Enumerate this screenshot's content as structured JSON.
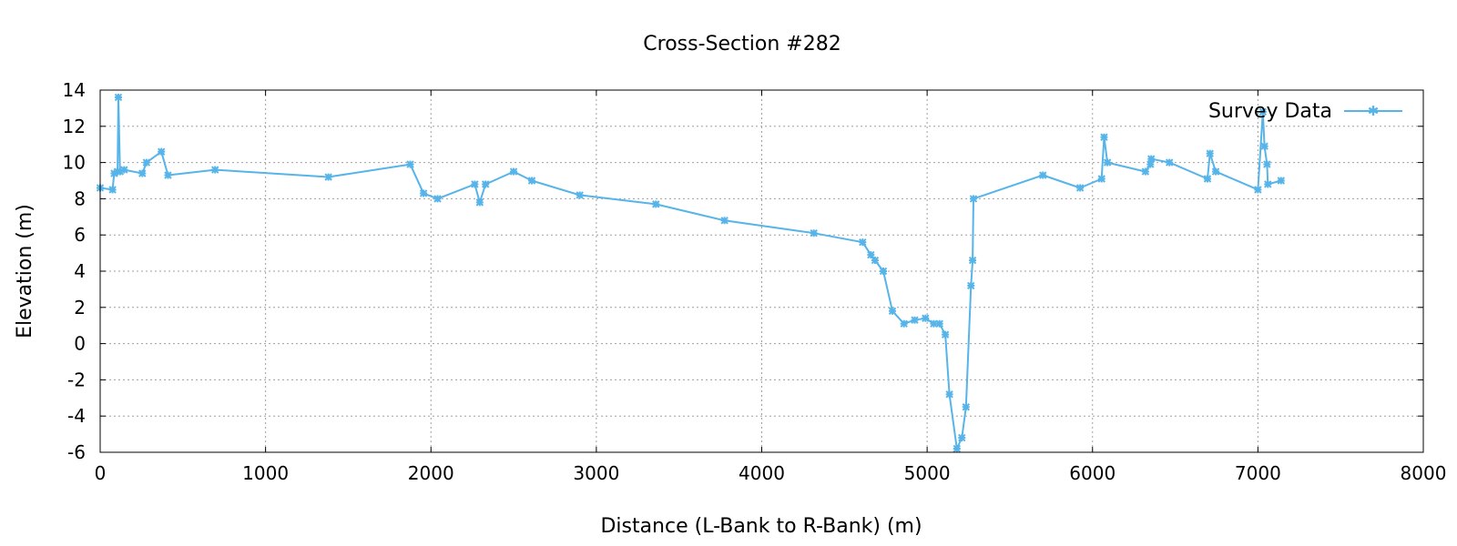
{
  "chart_data": {
    "type": "line",
    "title": "Cross-Section #282",
    "xlabel": "Distance (L-Bank to R-Bank) (m)",
    "ylabel": "Elevation (m)",
    "xlim": [
      0,
      8000
    ],
    "ylim": [
      -6,
      14
    ],
    "xticks": [
      0,
      1000,
      2000,
      3000,
      4000,
      5000,
      6000,
      7000,
      8000
    ],
    "yticks": [
      -6,
      -4,
      -2,
      0,
      2,
      4,
      6,
      8,
      10,
      12,
      14
    ],
    "grid": true,
    "legend_position": "top-right",
    "series": [
      {
        "name": "Survey Data",
        "color": "#56b4e9",
        "marker": "asterisk",
        "points": [
          [
            0,
            8.6
          ],
          [
            75,
            8.5
          ],
          [
            85,
            9.4
          ],
          [
            105,
            9.5
          ],
          [
            110,
            13.6
          ],
          [
            120,
            9.5
          ],
          [
            145,
            9.6
          ],
          [
            255,
            9.4
          ],
          [
            280,
            10.0
          ],
          [
            370,
            10.6
          ],
          [
            410,
            9.3
          ],
          [
            695,
            9.6
          ],
          [
            1380,
            9.2
          ],
          [
            1875,
            9.9
          ],
          [
            1955,
            8.3
          ],
          [
            2040,
            8.0
          ],
          [
            2265,
            8.8
          ],
          [
            2295,
            7.8
          ],
          [
            2330,
            8.8
          ],
          [
            2500,
            9.5
          ],
          [
            2610,
            9.0
          ],
          [
            2900,
            8.2
          ],
          [
            3360,
            7.7
          ],
          [
            3775,
            6.8
          ],
          [
            4315,
            6.1
          ],
          [
            4610,
            5.6
          ],
          [
            4660,
            4.9
          ],
          [
            4685,
            4.6
          ],
          [
            4735,
            4.0
          ],
          [
            4790,
            1.8
          ],
          [
            4860,
            1.1
          ],
          [
            4925,
            1.3
          ],
          [
            4990,
            1.4
          ],
          [
            5040,
            1.1
          ],
          [
            5075,
            1.1
          ],
          [
            5110,
            0.5
          ],
          [
            5135,
            -2.8
          ],
          [
            5180,
            -5.8
          ],
          [
            5210,
            -5.2
          ],
          [
            5235,
            -3.5
          ],
          [
            5265,
            3.2
          ],
          [
            5275,
            4.6
          ],
          [
            5280,
            8.0
          ],
          [
            5700,
            9.3
          ],
          [
            5925,
            8.6
          ],
          [
            6055,
            9.1
          ],
          [
            6070,
            11.4
          ],
          [
            6090,
            10.0
          ],
          [
            6320,
            9.5
          ],
          [
            6350,
            9.9
          ],
          [
            6355,
            10.2
          ],
          [
            6465,
            10.0
          ],
          [
            6695,
            9.1
          ],
          [
            6710,
            10.5
          ],
          [
            6745,
            9.5
          ],
          [
            7000,
            8.5
          ],
          [
            7030,
            12.8
          ],
          [
            7040,
            10.9
          ],
          [
            7055,
            9.9
          ],
          [
            7060,
            8.8
          ],
          [
            7140,
            9.0
          ]
        ]
      }
    ]
  }
}
